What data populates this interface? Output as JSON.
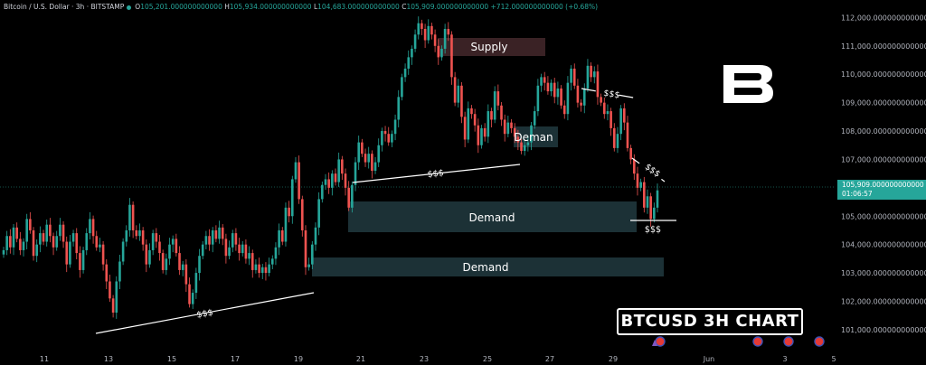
{
  "header": {
    "symbol": "Bitcoin / U.S. Dollar · 3h · BITSTAMP",
    "open_label": "O",
    "open": "105,201.000000000000",
    "high_label": "H",
    "high": "105,934.000000000000",
    "low_label": "L",
    "low": "104,683.000000000000",
    "close_label": "C",
    "close": "105,909.000000000000",
    "change": "+712.000000000000 (+0.68%)"
  },
  "price_tag": {
    "price": "105,909.000000000000",
    "countdown": "01:06:57"
  },
  "banner": "BTCUSD 3H CHART",
  "logo_icon": "b-brand-logo-icon",
  "colors": {
    "up": "#26a69a",
    "down": "#ef5350",
    "demand_zone": "#1c3136",
    "supply_zone": "#3a2225",
    "background": "#000000"
  },
  "chart_data": {
    "type": "candlestick",
    "symbol": "BTCUSD",
    "timeframe": "3h",
    "x_tick_labels": [
      "11",
      "13",
      "15",
      "17",
      "19",
      "21",
      "23",
      "25",
      "27",
      "29",
      "Jun",
      "3",
      "5"
    ],
    "y_tick_labels": [
      "112,000.000000000000",
      "111,000.000000000000",
      "110,000.000000000000",
      "109,000.000000000000",
      "108,000.000000000000",
      "107,000.000000000000",
      "106,000.000000000000",
      "105,000.000000000000",
      "104,000.000000000000",
      "103,000.000000000000",
      "102,000.000000000000",
      "101,000.000000000000"
    ],
    "ylim": [
      100200,
      112300
    ],
    "grid": false,
    "last_price": 105909,
    "candles_approx_close": [
      103800,
      104300,
      103900,
      104600,
      104200,
      103800,
      104100,
      104900,
      104500,
      103600,
      104000,
      104400,
      104100,
      104700,
      104300,
      103900,
      104300,
      104700,
      104100,
      103300,
      104100,
      104400,
      103700,
      103100,
      103800,
      104400,
      104900,
      104300,
      103900,
      104000,
      103300,
      102700,
      102100,
      101600,
      102700,
      103400,
      104100,
      104500,
      105400,
      104500,
      104300,
      104500,
      104000,
      103300,
      103800,
      104400,
      104100,
      103700,
      103100,
      103500,
      104000,
      104200,
      103700,
      103100,
      103300,
      102600,
      101900,
      102300,
      103000,
      103600,
      104000,
      104300,
      104000,
      104500,
      104200,
      104600,
      104200,
      103600,
      103900,
      104400,
      104000,
      103700,
      104000,
      103500,
      103700,
      103100,
      103300,
      103000,
      103200,
      103000,
      103300,
      103500,
      103900,
      104500,
      104100,
      105300,
      105000,
      106300,
      106900,
      105600,
      104500,
      103200,
      103300,
      104000,
      104600,
      105600,
      106100,
      106300,
      106000,
      106500,
      106200,
      107000,
      106500,
      106000,
      105300,
      106100,
      106900,
      107600,
      107200,
      106900,
      107200,
      106600,
      106900,
      107500,
      108000,
      107900,
      107600,
      107900,
      108400,
      109200,
      109900,
      110200,
      110600,
      110900,
      111400,
      111800,
      111600,
      111200,
      111700,
      111400,
      111000,
      110600,
      110900,
      111600,
      111400,
      109900,
      109000,
      109600,
      108500,
      107700,
      108800,
      108600,
      108200,
      107500,
      108100,
      107800,
      108700,
      108400,
      109400,
      108900,
      108400,
      107900,
      108300,
      108100,
      107800,
      107600,
      107300,
      107500,
      107600,
      108200,
      108700,
      109600,
      109900,
      109700,
      109400,
      109700,
      109200,
      109500,
      108900,
      108600,
      109700,
      110200,
      109600,
      109000,
      108900,
      109500,
      110300,
      109900,
      110100,
      109200,
      109000,
      108600,
      108700,
      108100,
      107400,
      107900,
      108800,
      108300,
      107400,
      107000,
      106500,
      106000,
      106200,
      105300,
      105700,
      104900,
      105300,
      105909
    ]
  },
  "annotations": {
    "supply": "Supply",
    "demain": "Deman",
    "demand_upper": "Demand",
    "demand_lower": "Demand",
    "liquidity_labels": [
      "$$$",
      "$$$",
      "$$$",
      "$$$",
      "$$$"
    ]
  }
}
